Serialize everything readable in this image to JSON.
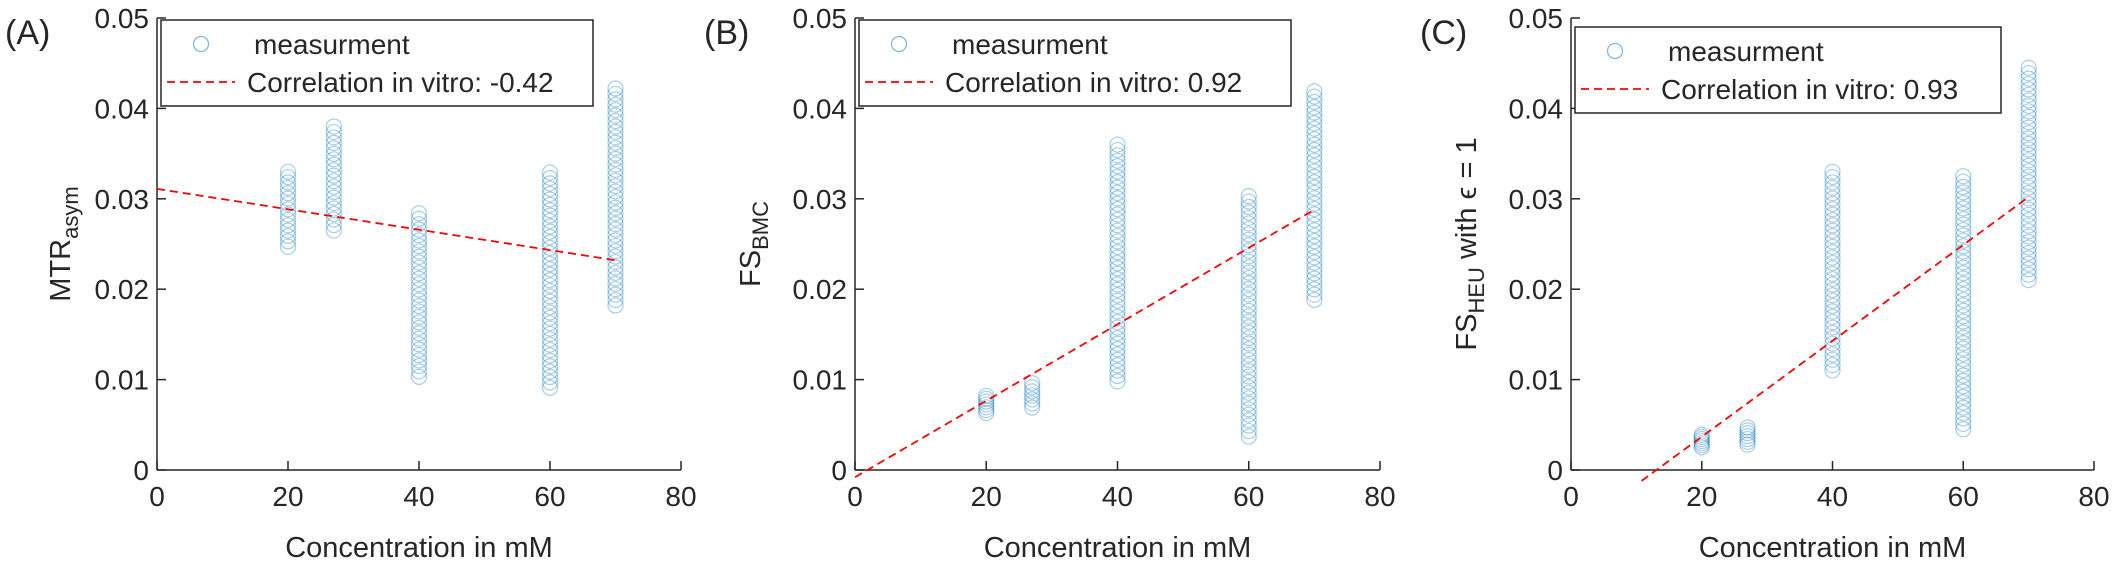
{
  "colors": {
    "marker": "#0072BD",
    "fit": "#FF0000",
    "axis": "#262626",
    "legend_border": "#262626"
  },
  "chart_data": [
    {
      "type": "scatter",
      "panel_label": "(A)",
      "xlabel": "Concentration in mM",
      "ylabel_main": "MTR",
      "ylabel_sub": "asym",
      "ylabel_suffix": "",
      "xlim": [
        0,
        80
      ],
      "ylim": [
        0,
        0.05
      ],
      "xticks": [
        0,
        20,
        40,
        60,
        80
      ],
      "yticks": [
        0,
        0.01,
        0.02,
        0.03,
        0.04,
        0.05
      ],
      "xtick_labels": [
        "0",
        "20",
        "40",
        "60",
        "80"
      ],
      "ytick_labels": [
        "0",
        "0.01",
        "0.02",
        "0.03",
        "0.04",
        "0.05"
      ],
      "grid": false,
      "legend_position": "top",
      "series": [
        {
          "name": "measurment",
          "kind": "markers",
          "groups": [
            {
              "x": 20,
              "ymin": 0.0247,
              "ymax": 0.033
            },
            {
              "x": 27,
              "ymin": 0.0265,
              "ymax": 0.038
            },
            {
              "x": 40,
              "ymin": 0.0103,
              "ymax": 0.0284
            },
            {
              "x": 60,
              "ymin": 0.0091,
              "ymax": 0.0329
            },
            {
              "x": 70,
              "ymin": 0.0182,
              "ymax": 0.0422
            }
          ]
        },
        {
          "name": "Correlation in vitro: -0.42",
          "kind": "line",
          "x": [
            0,
            70
          ],
          "y": [
            0.0311,
            0.0232
          ]
        }
      ]
    },
    {
      "type": "scatter",
      "panel_label": "(B)",
      "xlabel": "Concentration in mM",
      "ylabel_main": "FS",
      "ylabel_sub": "BMC",
      "ylabel_suffix": "",
      "xlim": [
        0,
        80
      ],
      "ylim": [
        0,
        0.05
      ],
      "xticks": [
        0,
        20,
        40,
        60,
        80
      ],
      "yticks": [
        0,
        0.01,
        0.02,
        0.03,
        0.04,
        0.05
      ],
      "xtick_labels": [
        "0",
        "20",
        "40",
        "60",
        "80"
      ],
      "ytick_labels": [
        "0",
        "0.01",
        "0.02",
        "0.03",
        "0.04",
        "0.05"
      ],
      "grid": false,
      "legend_position": "top",
      "series": [
        {
          "name": "measurment",
          "kind": "markers",
          "groups": [
            {
              "x": 20,
              "ymin": 0.0063,
              "ymax": 0.0082
            },
            {
              "x": 27,
              "ymin": 0.0069,
              "ymax": 0.0096
            },
            {
              "x": 40,
              "ymin": 0.0098,
              "ymax": 0.036
            },
            {
              "x": 60,
              "ymin": 0.0037,
              "ymax": 0.0303
            },
            {
              "x": 70,
              "ymin": 0.0188,
              "ymax": 0.0419
            }
          ]
        },
        {
          "name": "Correlation in vitro: 0.92",
          "kind": "line",
          "x": [
            0,
            70
          ],
          "y": [
            -0.0008,
            0.0288
          ]
        }
      ]
    },
    {
      "type": "scatter",
      "panel_label": "(C)",
      "xlabel": "Concentration in mM",
      "ylabel_main": "FS",
      "ylabel_sub": "HEU",
      "ylabel_suffix": " with ϵ = 1",
      "xlim": [
        0,
        80
      ],
      "ylim": [
        0,
        0.05
      ],
      "xticks": [
        0,
        20,
        40,
        60,
        80
      ],
      "yticks": [
        0,
        0.01,
        0.02,
        0.03,
        0.04,
        0.05
      ],
      "xtick_labels": [
        "0",
        "20",
        "40",
        "60",
        "80"
      ],
      "ytick_labels": [
        "0",
        "0.01",
        "0.02",
        "0.03",
        "0.04",
        "0.05"
      ],
      "grid": false,
      "legend_position": "top",
      "series": [
        {
          "name": "measurment",
          "kind": "markers",
          "groups": [
            {
              "x": 20,
              "ymin": 0.0025,
              "ymax": 0.0039
            },
            {
              "x": 27,
              "ymin": 0.0028,
              "ymax": 0.0047
            },
            {
              "x": 40,
              "ymin": 0.011,
              "ymax": 0.033
            },
            {
              "x": 60,
              "ymin": 0.0045,
              "ymax": 0.0325
            },
            {
              "x": 70,
              "ymin": 0.021,
              "ymax": 0.0445
            }
          ]
        },
        {
          "name": "Correlation in vitro: 0.93",
          "kind": "line",
          "x": [
            10.8,
            70
          ],
          "y": [
            -0.0012,
            0.0302
          ]
        }
      ]
    }
  ]
}
